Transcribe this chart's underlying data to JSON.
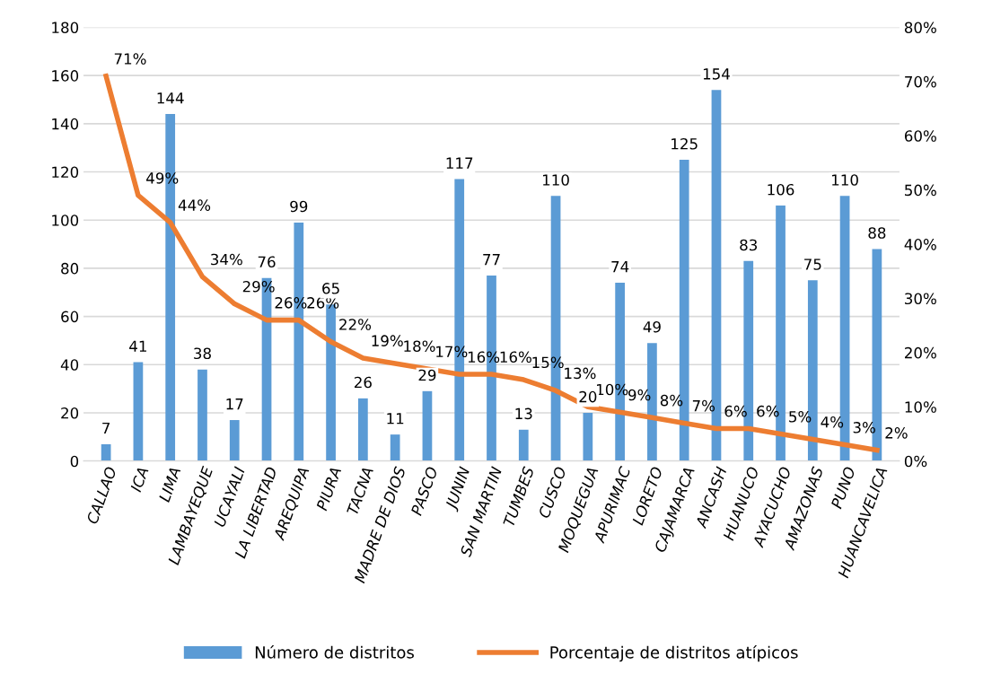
{
  "chart_data": {
    "type": "bar",
    "categories": [
      "CALLAO",
      "ICA",
      "LIMA",
      "LAMBAYEQUE",
      "UCAYALI",
      "LA LIBERTAD",
      "AREQUIPA",
      "PIURA",
      "TACNA",
      "MADRE DE DIOS",
      "PASCO",
      "JUNIN",
      "SAN MARTIN",
      "TUMBES",
      "CUSCO",
      "MOQUEGUA",
      "APURIMAC",
      "LORETO",
      "CAJAMARCA",
      "ANCASH",
      "HUANUCO",
      "AYACUCHO",
      "AMAZONAS",
      "PUNO",
      "HUANCAVELICA"
    ],
    "series": [
      {
        "name": "Número de distritos",
        "color": "#5b9bd5",
        "values": [
          7,
          41,
          144,
          38,
          17,
          76,
          99,
          65,
          26,
          11,
          29,
          117,
          77,
          13,
          110,
          20,
          74,
          49,
          125,
          154,
          83,
          106,
          75,
          110,
          88
        ]
      },
      {
        "name": "Porcentaje de distritos atípicos",
        "type": "line",
        "axis": "y2",
        "color": "#ed7d31",
        "values": [
          71,
          49,
          44,
          34,
          29,
          26,
          26,
          22,
          19,
          18,
          17,
          16,
          16,
          15,
          13,
          10,
          9,
          8,
          7,
          6,
          6,
          5,
          4,
          3,
          2
        ],
        "value_labels": [
          "71%",
          "49%",
          "44%",
          "34%",
          "29%",
          "26%",
          "26%",
          "22%",
          "19%",
          "18%",
          "17%",
          "16%",
          "16%",
          "15%",
          "13%",
          "10%",
          "9%",
          "8%",
          "7%",
          "6%",
          "6%",
          "5%",
          "4%",
          "3%",
          "2%"
        ]
      }
    ],
    "ylim": [
      0,
      180
    ],
    "yticks": [
      0,
      20,
      40,
      60,
      80,
      100,
      120,
      140,
      160,
      180
    ],
    "y2lim": [
      0,
      80
    ],
    "y2ticks": [
      {
        "value": 0,
        "label": "0%"
      },
      {
        "value": 10,
        "label": "10%"
      },
      {
        "value": 20,
        "label": "20%"
      },
      {
        "value": 30,
        "label": "30%"
      },
      {
        "value": 40,
        "label": "40%"
      },
      {
        "value": 50,
        "label": "50%"
      },
      {
        "value": 60,
        "label": "60%"
      },
      {
        "value": 70,
        "label": "70%"
      },
      {
        "value": 80,
        "label": "80%"
      }
    ],
    "data_labels": true,
    "grid": "y",
    "legend": "bottom",
    "marker": "none",
    "line_style": "solid"
  }
}
